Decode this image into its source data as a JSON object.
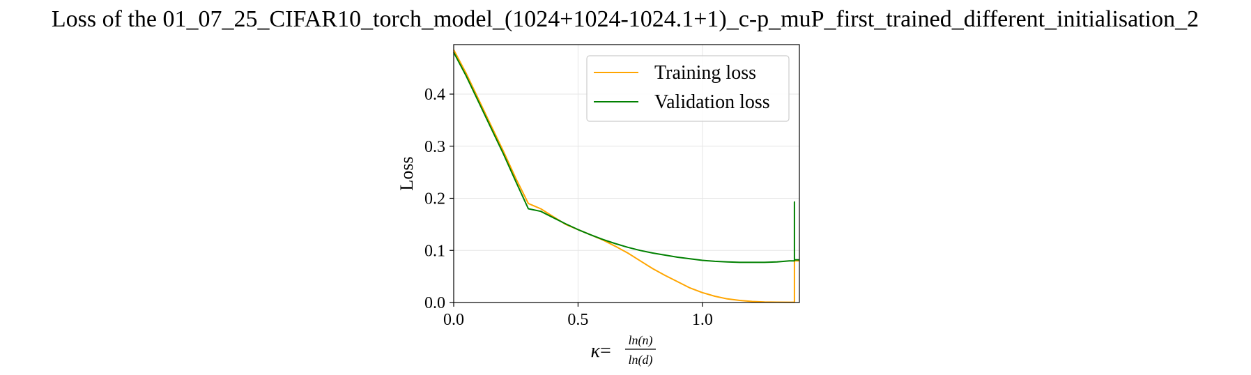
{
  "chart_data": {
    "type": "line",
    "title": "Loss of the 01_07_25_CIFAR10_torch_model_(1024+1024-1024.1+1)_c-p_muP_first_trained_different_initialisation_2",
    "xlabel": {
      "symbol": "κ",
      "equals": "=",
      "numerator": "ln(n)",
      "denominator": "ln(d)"
    },
    "ylabel": "Loss",
    "xlim": [
      0.0,
      1.39
    ],
    "ylim": [
      0.0,
      0.495
    ],
    "xticks": [
      0.0,
      0.5,
      1.0
    ],
    "xtick_labels": [
      "0.0",
      "0.5",
      "1.0"
    ],
    "yticks": [
      0.0,
      0.1,
      0.2,
      0.3,
      0.4
    ],
    "ytick_labels": [
      "0.0",
      "0.1",
      "0.2",
      "0.3",
      "0.4"
    ],
    "grid": true,
    "legend_position": "top-right",
    "series": [
      {
        "name": "Training loss",
        "color": "#ffa500",
        "x": [
          0.0,
          0.05,
          0.1,
          0.15,
          0.2,
          0.25,
          0.3,
          0.35,
          0.4,
          0.45,
          0.5,
          0.55,
          0.6,
          0.65,
          0.7,
          0.75,
          0.8,
          0.85,
          0.9,
          0.95,
          1.0,
          1.05,
          1.1,
          1.15,
          1.2,
          1.25,
          1.3,
          1.35,
          1.36,
          1.37,
          1.37,
          1.39
        ],
        "y": [
          0.485,
          0.44,
          0.39,
          0.34,
          0.29,
          0.238,
          0.19,
          0.18,
          0.165,
          0.15,
          0.14,
          0.13,
          0.12,
          0.108,
          0.095,
          0.08,
          0.065,
          0.052,
          0.04,
          0.028,
          0.019,
          0.012,
          0.007,
          0.004,
          0.002,
          0.001,
          0.0007,
          0.0005,
          0.0005,
          0.0005,
          0.08,
          0.08
        ]
      },
      {
        "name": "Validation loss",
        "color": "#008000",
        "x": [
          0.0,
          0.05,
          0.1,
          0.15,
          0.2,
          0.25,
          0.3,
          0.35,
          0.4,
          0.45,
          0.5,
          0.55,
          0.6,
          0.65,
          0.7,
          0.75,
          0.8,
          0.85,
          0.9,
          0.95,
          1.0,
          1.05,
          1.1,
          1.15,
          1.2,
          1.25,
          1.3,
          1.35,
          1.36,
          1.37,
          1.37,
          1.37,
          1.39
        ],
        "y": [
          0.48,
          0.435,
          0.385,
          0.335,
          0.285,
          0.232,
          0.18,
          0.175,
          0.163,
          0.151,
          0.14,
          0.13,
          0.121,
          0.113,
          0.106,
          0.1,
          0.095,
          0.091,
          0.087,
          0.084,
          0.081,
          0.079,
          0.078,
          0.077,
          0.077,
          0.077,
          0.078,
          0.08,
          0.08,
          0.08,
          0.193,
          0.082,
          0.082
        ]
      }
    ]
  }
}
